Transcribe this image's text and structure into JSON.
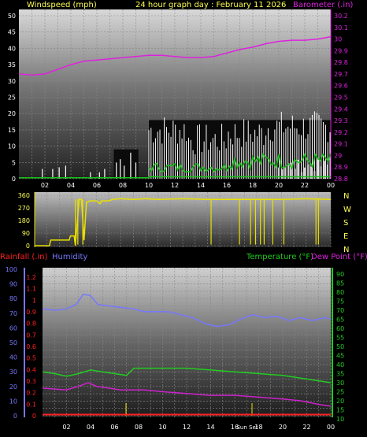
{
  "header": {
    "left": "Windspeed (mph)",
    "center": "24 hour graph day : February 11 2026",
    "right": "Barometer (.in)"
  },
  "colors": {
    "windspeed": "#ffffff",
    "gust_fill": "#cfcfcf",
    "wind_avg": "#18c018",
    "barometer": "#dd22dd",
    "direction": "#e8e000",
    "humidity": "#7777ff",
    "temperature": "#22cc22",
    "dewpoint": "#cc22cc",
    "rainfall": "#ff2020",
    "header_text": "#ffff55"
  },
  "chart_data": [
    {
      "type": "line",
      "name": "windspeed-barometer",
      "x_ticks": [
        "02",
        "04",
        "06",
        "08",
        "10",
        "12",
        "14",
        "16",
        "18",
        "20",
        "22",
        "00"
      ],
      "x_range": [
        0,
        24
      ],
      "y_left": {
        "label": "Windspeed (mph)",
        "range": [
          0,
          50
        ],
        "ticks": [
          "0",
          "5",
          "10",
          "15",
          "20",
          "25",
          "30",
          "35",
          "40",
          "45",
          "50"
        ]
      },
      "y_right": {
        "label": "Barometer (.in)",
        "range": [
          28.8,
          30.2
        ],
        "ticks": [
          "28.8",
          "28.9",
          "29",
          "29.1",
          "29.2",
          "29.3",
          "29.4",
          "29.5",
          "29.6",
          "29.7",
          "29.8",
          "29.9",
          "30",
          "30.1",
          "30.2"
        ]
      },
      "series": [
        {
          "name": "Barometer (.in)",
          "axis": "right",
          "x": [
            0,
            1,
            2,
            3,
            4,
            5,
            6,
            7,
            8,
            9,
            10,
            11,
            12,
            13,
            14,
            15,
            16,
            17,
            18,
            19,
            20,
            21,
            22,
            23,
            24
          ],
          "y": [
            29.7,
            29.69,
            29.7,
            29.74,
            29.78,
            29.81,
            29.82,
            29.83,
            29.84,
            29.85,
            29.86,
            29.86,
            29.85,
            29.84,
            29.84,
            29.85,
            29.88,
            29.91,
            29.93,
            29.96,
            29.98,
            29.99,
            29.99,
            30.0,
            30.02
          ]
        }
      ]
    },
    {
      "type": "line",
      "name": "wind-direction",
      "x_range": [
        0,
        24
      ],
      "y_left": {
        "range": [
          0,
          360
        ],
        "ticks": [
          "0",
          "90",
          "180",
          "270",
          "360"
        ]
      },
      "y_right": {
        "ticks": [
          "N",
          "E",
          "S",
          "W",
          "N"
        ]
      },
      "series": [
        {
          "name": "direction",
          "x": [
            0,
            1.2,
            1.3,
            2.8,
            2.9,
            3.2,
            3.3,
            3.6,
            3.8,
            4.0,
            4.2,
            4.5,
            5.0,
            5.3,
            5.4,
            6.0,
            6.3,
            7.0,
            8.0,
            9.0,
            10,
            12,
            14,
            16,
            18,
            20,
            22,
            24
          ],
          "y": [
            0,
            0,
            40,
            40,
            70,
            70,
            0,
            330,
            330,
            40,
            310,
            320,
            320,
            300,
            320,
            320,
            330,
            335,
            330,
            335,
            330,
            335,
            330,
            330,
            330,
            330,
            335,
            330
          ]
        }
      ]
    },
    {
      "type": "line",
      "name": "humidity-temperature-dewpoint",
      "x_ticks": [
        "02",
        "04",
        "06",
        "08",
        "10",
        "12",
        "14",
        "16",
        "Sun Set",
        "18",
        "20",
        "22",
        "00"
      ],
      "x_range": [
        0,
        24
      ],
      "y_left_inner": {
        "label": "Rainfall (.in)",
        "range": [
          0,
          1.2
        ],
        "ticks": [
          "0",
          "0.1",
          "0.2",
          "0.3",
          "0.4",
          "0.5",
          "0.6",
          "0.7",
          "0.8",
          "0.9",
          "1",
          "1.1",
          "1.2"
        ]
      },
      "y_left_outer": {
        "label": "Humidity",
        "range": [
          0,
          100
        ],
        "ticks": [
          "0",
          "10",
          "20",
          "30",
          "40",
          "50",
          "60",
          "70",
          "80",
          "90",
          "100"
        ]
      },
      "y_right": {
        "label": "Temperature (°F)",
        "label2": "Dew Point (°F)",
        "range": [
          10,
          90
        ],
        "ticks": [
          "10",
          "15",
          "20",
          "25",
          "30",
          "35",
          "40",
          "45",
          "50",
          "55",
          "60",
          "65",
          "70",
          "75",
          "80",
          "85",
          "90"
        ]
      },
      "series": [
        {
          "name": "Humidity",
          "axis": "outer",
          "x": [
            0,
            1,
            2,
            2.8,
            3.4,
            4.0,
            4.6,
            5.5,
            6.5,
            7.5,
            8.5,
            9.5,
            10.5,
            11.5,
            12.5,
            13.5,
            14.5,
            15.5,
            16.5,
            17.5,
            18.5,
            19.5,
            20.5,
            21.5,
            22.5,
            23.5,
            24
          ],
          "y": [
            73,
            72,
            73,
            76,
            83,
            82,
            76,
            75,
            74,
            73,
            71,
            71,
            71,
            69,
            67,
            63,
            61,
            62,
            66,
            69,
            67,
            68,
            65,
            67,
            65,
            67,
            66
          ]
        },
        {
          "name": "Temperature (°F)",
          "axis": "right",
          "x": [
            0,
            1,
            2,
            3,
            4,
            5,
            6,
            7,
            7.6,
            8.5,
            10,
            12,
            14,
            16,
            18,
            20,
            22,
            23.5,
            24
          ],
          "y": [
            36,
            35,
            33.5,
            35,
            37,
            36,
            35,
            34,
            38,
            38,
            38,
            38,
            37,
            36,
            35,
            34,
            32,
            30.5,
            30
          ]
        },
        {
          "name": "Dew Point (°F)",
          "axis": "right",
          "x": [
            0,
            1,
            2,
            3,
            3.8,
            4.5,
            5.5,
            6.5,
            7.5,
            8.5,
            10,
            12,
            14,
            16,
            18,
            20,
            21.5,
            23,
            24
          ],
          "y": [
            27,
            26.5,
            26,
            28,
            30,
            28,
            27,
            26,
            26,
            26,
            25,
            24,
            23,
            23,
            22,
            21,
            20,
            18,
            17
          ]
        },
        {
          "name": "Rainfall (.in)",
          "axis": "inner",
          "x": [
            0,
            24
          ],
          "y": [
            0.01,
            0.01
          ]
        }
      ]
    }
  ]
}
